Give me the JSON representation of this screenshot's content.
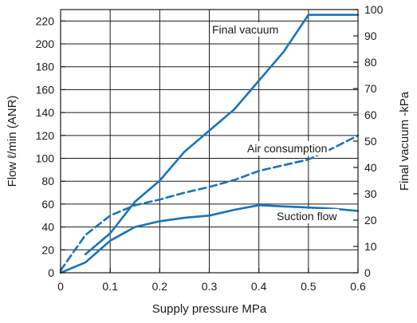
{
  "chart_data": {
    "type": "line",
    "xlabel": "Supply pressure  MPa",
    "ylabel": "Flow  ℓ/min (ANR)",
    "y2label": "Final vacuum  -kPa",
    "xlim": [
      0,
      0.6
    ],
    "ylim": [
      0,
      230
    ],
    "y2lim": [
      0,
      100
    ],
    "xticks": [
      0,
      0.1,
      0.2,
      0.3,
      0.4,
      0.5,
      0.6
    ],
    "xtick_labels": [
      "0",
      "0.1",
      "0.2",
      "0.3",
      "0.4",
      "0.5",
      "0.6"
    ],
    "yticks": [
      0,
      20,
      40,
      60,
      80,
      100,
      120,
      140,
      160,
      180,
      200,
      220
    ],
    "ytick_labels": [
      "0",
      "20",
      "40",
      "60",
      "80",
      "100",
      "120",
      "140",
      "160",
      "180",
      "200",
      "220"
    ],
    "y2ticks": [
      0,
      10,
      20,
      30,
      40,
      50,
      60,
      70,
      80,
      90,
      100
    ],
    "y2tick_labels": [
      "0",
      "10",
      "20",
      "30",
      "40",
      "50",
      "60",
      "70",
      "80",
      "90",
      "100"
    ],
    "grid": true,
    "color": "#1a73b8",
    "series": [
      {
        "name": "Final vacuum",
        "axis": "right",
        "style": "solid",
        "x": [
          0.05,
          0.1,
          0.15,
          0.2,
          0.25,
          0.3,
          0.35,
          0.4,
          0.45,
          0.5,
          0.6
        ],
        "y": [
          7,
          15,
          27,
          35,
          46,
          54,
          62,
          73,
          84,
          98,
          98
        ]
      },
      {
        "name": "Air consumption",
        "axis": "left",
        "style": "dashed",
        "x": [
          0,
          0.05,
          0.1,
          0.15,
          0.2,
          0.25,
          0.3,
          0.35,
          0.4,
          0.45,
          0.5,
          0.55,
          0.6
        ],
        "y": [
          2,
          33,
          50,
          59,
          64,
          70,
          75,
          81,
          89,
          94,
          99,
          109,
          120
        ]
      },
      {
        "name": "Suction flow",
        "axis": "left",
        "style": "solid",
        "x": [
          0,
          0.05,
          0.1,
          0.15,
          0.2,
          0.25,
          0.3,
          0.35,
          0.4,
          0.45,
          0.5,
          0.55,
          0.6
        ],
        "y": [
          0,
          9,
          28,
          40,
          45,
          48,
          50,
          55,
          59,
          58,
          57,
          56,
          54
        ]
      }
    ]
  }
}
